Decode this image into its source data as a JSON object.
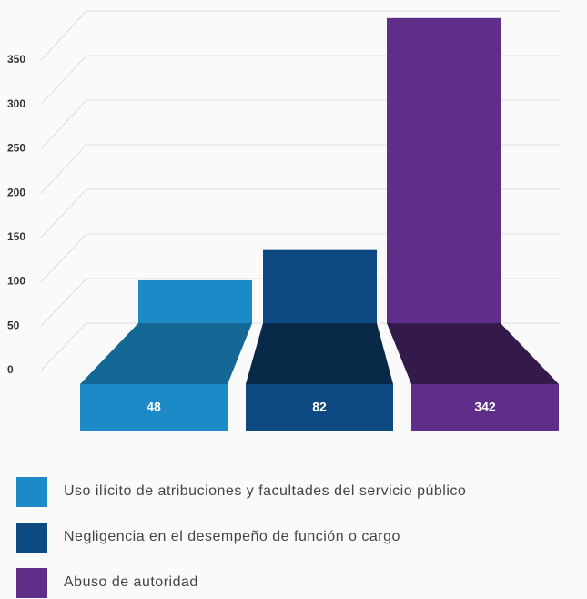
{
  "chart_data": {
    "type": "bar",
    "categories": [
      "Uso ilícito de atribuciones y facultades del servicio público",
      "Negligencia en el desempeño de función o cargo",
      "Abuso de autoridad"
    ],
    "values": [
      48,
      82,
      342
    ],
    "colors": [
      "#1b8ac6",
      "#0e4a82",
      "#5f2e89"
    ],
    "ylim": [
      0,
      350
    ],
    "yticks": [
      0,
      50,
      100,
      150,
      200,
      250,
      300,
      350
    ],
    "grid": true
  }
}
